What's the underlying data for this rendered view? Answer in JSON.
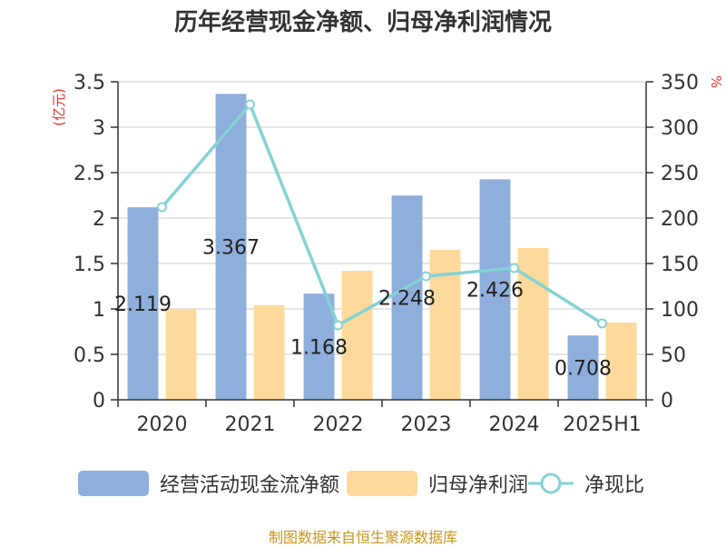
{
  "chart_data": {
    "type": "bar",
    "title": "历年经营现金净额、归母净利润情况",
    "categories": [
      "2020",
      "2021",
      "2022",
      "2023",
      "2024",
      "2025H1"
    ],
    "y_left": {
      "label": "(亿元)",
      "ylim": [
        0,
        3.5
      ],
      "ticks": [
        "0",
        "0.5",
        "1",
        "1.5",
        "2",
        "2.5",
        "3",
        "3.5"
      ],
      "tick_values": [
        0,
        0.5,
        1,
        1.5,
        2,
        2.5,
        3,
        3.5
      ]
    },
    "y_right": {
      "label": "%",
      "ylim": [
        0,
        350
      ],
      "ticks": [
        "0",
        "50",
        "100",
        "150",
        "200",
        "250",
        "300",
        "350"
      ],
      "tick_values": [
        0,
        50,
        100,
        150,
        200,
        250,
        300,
        350
      ]
    },
    "grid": true,
    "legend_position": "bottom",
    "series": [
      {
        "name": "经营活动现金流净额",
        "type": "bar",
        "axis": "left",
        "color": "#8eaedb",
        "values": [
          2.119,
          3.367,
          1.168,
          2.248,
          2.426,
          0.708
        ],
        "labels": [
          "2.119",
          "3.367",
          "1.168",
          "2.248",
          "2.426",
          "0.708"
        ]
      },
      {
        "name": "归母净利润",
        "type": "bar",
        "axis": "left",
        "color": "#fdd99b",
        "values": [
          1.0,
          1.04,
          1.42,
          1.65,
          1.67,
          0.85
        ]
      },
      {
        "name": "净现比",
        "type": "line",
        "axis": "right",
        "color": "#86d2d5",
        "values": [
          212,
          325,
          82,
          136,
          145,
          84
        ]
      }
    ]
  },
  "source": "制图数据来自恒生聚源数据库"
}
